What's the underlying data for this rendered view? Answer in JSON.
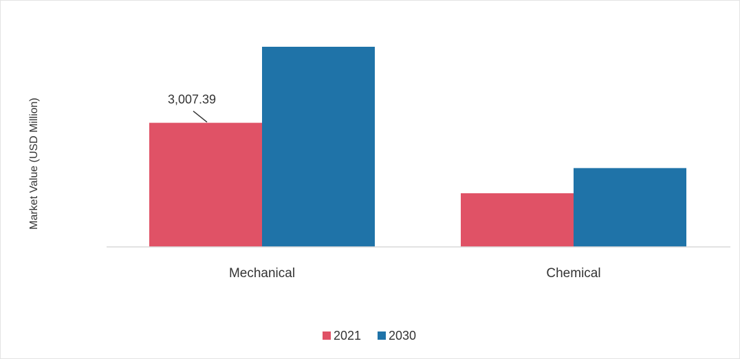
{
  "chart_data": {
    "type": "bar",
    "title": "",
    "xlabel": "",
    "ylabel": "Market Value (USD Million)",
    "categories": [
      "Mechanical",
      "Chemical"
    ],
    "series": [
      {
        "name": "2021",
        "color": "#e05266",
        "values": [
          3007.39,
          1300
        ]
      },
      {
        "name": "2030",
        "color": "#1f73a8",
        "values": [
          4850,
          1910
        ]
      }
    ],
    "ylim": [
      0,
      5000
    ],
    "grid": false,
    "legend_position": "bottom-center",
    "annotations": [
      {
        "series": "2021",
        "category": "Mechanical",
        "text": "3,007.39"
      }
    ]
  }
}
